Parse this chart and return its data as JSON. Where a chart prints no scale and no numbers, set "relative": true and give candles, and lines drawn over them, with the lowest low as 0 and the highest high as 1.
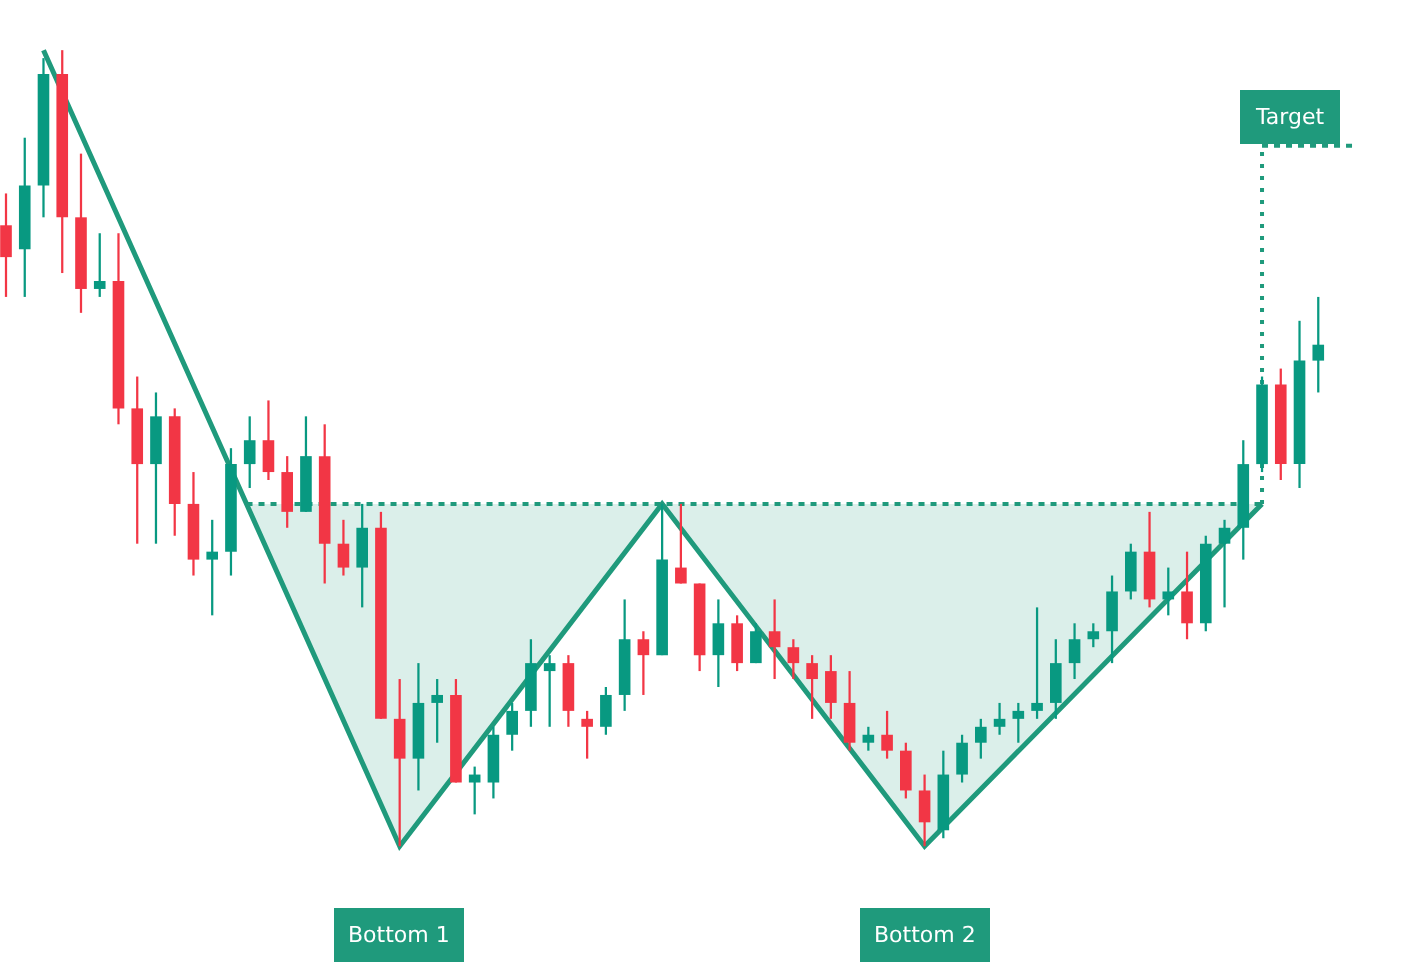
{
  "chart_data": {
    "type": "candlestick",
    "relative": true,
    "categories": [
      null,
      null,
      null,
      null,
      null,
      null,
      null,
      null,
      null,
      null,
      null,
      null,
      null,
      null,
      null,
      null,
      null,
      null,
      null,
      null,
      null,
      null,
      null,
      null,
      null,
      null,
      null,
      null,
      null,
      null,
      null,
      null,
      null,
      null,
      null,
      null,
      null,
      null,
      null,
      null,
      null,
      null,
      null,
      null,
      null,
      null,
      null,
      null,
      null,
      null,
      null,
      null,
      null,
      null,
      null,
      null,
      null,
      null,
      null,
      null,
      null,
      null,
      null,
      null,
      null,
      null,
      null,
      null,
      null,
      null,
      null
    ],
    "colors": [
      "#f23645",
      "#089981",
      "#089981",
      "#f23645",
      "#f23645",
      "#089981",
      "#f23645",
      "#f23645",
      "#089981",
      "#f23645",
      "#f23645",
      "#089981",
      "#089981",
      "#089981",
      "#f23645",
      "#f23645",
      "#089981",
      "#f23645",
      "#f23645",
      "#089981",
      "#f23645",
      "#f23645",
      "#089981",
      "#089981",
      "#f23645",
      "#089981",
      "#089981",
      "#089981",
      "#089981",
      "#089981",
      "#f23645",
      "#f23645",
      "#089981",
      "#089981",
      "#f23645",
      "#089981",
      "#f23645",
      "#f23645",
      "#089981",
      "#f23645",
      "#089981",
      "#f23645",
      "#f23645",
      "#f23645",
      "#f23645",
      "#f23645",
      "#089981",
      "#f23645",
      "#f23645",
      "#f23645",
      "#089981",
      "#089981",
      "#089981",
      "#089981",
      "#089981",
      "#089981",
      "#089981",
      "#089981",
      "#089981",
      "#089981",
      "#089981",
      "#f23645",
      "#089981",
      "#f23645",
      "#089981",
      "#089981",
      "#089981",
      "#089981",
      "#f23645",
      "#089981",
      "#089981"
    ],
    "ohlc": [
      [
        0.78,
        0.82,
        0.69,
        0.74
      ],
      [
        0.75,
        0.89,
        0.69,
        0.83
      ],
      [
        0.83,
        0.99,
        0.79,
        0.97
      ],
      [
        0.97,
        1,
        0.72,
        0.79
      ],
      [
        0.79,
        0.87,
        0.67,
        0.7
      ],
      [
        0.7,
        0.77,
        0.69,
        0.71
      ],
      [
        0.71,
        0.77,
        0.53,
        0.55
      ],
      [
        0.55,
        0.59,
        0.38,
        0.48
      ],
      [
        0.48,
        0.57,
        0.38,
        0.54
      ],
      [
        0.54,
        0.55,
        0.39,
        0.43
      ],
      [
        0.43,
        0.47,
        0.34,
        0.36
      ],
      [
        0.36,
        0.41,
        0.29,
        0.37
      ],
      [
        0.37,
        0.5,
        0.34,
        0.48
      ],
      [
        0.48,
        0.54,
        0.45,
        0.51
      ],
      [
        0.51,
        0.56,
        0.46,
        0.47
      ],
      [
        0.47,
        0.49,
        0.4,
        0.42
      ],
      [
        0.42,
        0.54,
        0.42,
        0.49
      ],
      [
        0.49,
        0.53,
        0.33,
        0.38
      ],
      [
        0.38,
        0.41,
        0.34,
        0.35
      ],
      [
        0.35,
        0.43,
        0.3,
        0.4
      ],
      [
        0.4,
        0.42,
        0.16,
        0.16
      ],
      [
        0.16,
        0.21,
        0,
        0.11
      ],
      [
        0.11,
        0.23,
        0.07,
        0.18
      ],
      [
        0.18,
        0.21,
        0.13,
        0.19
      ],
      [
        0.19,
        0.21,
        0.08,
        0.08
      ],
      [
        0.08,
        0.1,
        0.04,
        0.09
      ],
      [
        0.08,
        0.15,
        0.06,
        0.14
      ],
      [
        0.14,
        0.18,
        0.12,
        0.17
      ],
      [
        0.17,
        0.26,
        0.15,
        0.23
      ],
      [
        0.22,
        0.24,
        0.15,
        0.23
      ],
      [
        0.23,
        0.24,
        0.15,
        0.17
      ],
      [
        0.16,
        0.17,
        0.11,
        0.15
      ],
      [
        0.15,
        0.2,
        0.14,
        0.19
      ],
      [
        0.19,
        0.31,
        0.17,
        0.26
      ],
      [
        0.26,
        0.27,
        0.19,
        0.24
      ],
      [
        0.24,
        0.43,
        0.24,
        0.36
      ],
      [
        0.35,
        0.43,
        0.33,
        0.33
      ],
      [
        0.33,
        0.33,
        0.22,
        0.24
      ],
      [
        0.24,
        0.31,
        0.2,
        0.28
      ],
      [
        0.28,
        0.29,
        0.22,
        0.23
      ],
      [
        0.23,
        0.28,
        0.23,
        0.27
      ],
      [
        0.27,
        0.31,
        0.21,
        0.25
      ],
      [
        0.25,
        0.26,
        0.21,
        0.23
      ],
      [
        0.23,
        0.24,
        0.16,
        0.21
      ],
      [
        0.22,
        0.24,
        0.16,
        0.18
      ],
      [
        0.18,
        0.22,
        0.12,
        0.13
      ],
      [
        0.13,
        0.15,
        0.12,
        0.14
      ],
      [
        0.14,
        0.17,
        0.11,
        0.12
      ],
      [
        0.12,
        0.13,
        0.06,
        0.07
      ],
      [
        0.07,
        0.09,
        0,
        0.03
      ],
      [
        0.02,
        0.12,
        0.01,
        0.09
      ],
      [
        0.09,
        0.14,
        0.08,
        0.13
      ],
      [
        0.13,
        0.16,
        0.11,
        0.15
      ],
      [
        0.15,
        0.18,
        0.14,
        0.16
      ],
      [
        0.16,
        0.18,
        0.13,
        0.17
      ],
      [
        0.17,
        0.3,
        0.16,
        0.18
      ],
      [
        0.18,
        0.26,
        0.16,
        0.23
      ],
      [
        0.23,
        0.28,
        0.21,
        0.26
      ],
      [
        0.26,
        0.28,
        0.25,
        0.27
      ],
      [
        0.27,
        0.34,
        0.23,
        0.32
      ],
      [
        0.32,
        0.38,
        0.31,
        0.37
      ],
      [
        0.37,
        0.42,
        0.3,
        0.31
      ],
      [
        0.31,
        0.35,
        0.29,
        0.32
      ],
      [
        0.32,
        0.37,
        0.26,
        0.28
      ],
      [
        0.28,
        0.39,
        0.27,
        0.38
      ],
      [
        0.38,
        0.41,
        0.3,
        0.4
      ],
      [
        0.4,
        0.51,
        0.36,
        0.48
      ],
      [
        0.48,
        0.59,
        0.47,
        0.58
      ],
      [
        0.58,
        0.6,
        0.46,
        0.48
      ],
      [
        0.48,
        0.66,
        0.45,
        0.61
      ],
      [
        0.61,
        0.69,
        0.57,
        0.63
      ]
    ],
    "series": [
      {
        "type": "line",
        "color": "#1f9a7c",
        "values": [
          null,
          null,
          1,
          null,
          null,
          null,
          null,
          null,
          null,
          null,
          null,
          null,
          null,
          null,
          null,
          null,
          null,
          null,
          null,
          null,
          null,
          0,
          null,
          null,
          null,
          null,
          null,
          null,
          null,
          null,
          null,
          null,
          null,
          null,
          null,
          0.43,
          null,
          null,
          null,
          null,
          null,
          null,
          null,
          null,
          null,
          null,
          null,
          null,
          null,
          0,
          null,
          null,
          null,
          null,
          null,
          null,
          null,
          null,
          null,
          null,
          null,
          null,
          null,
          null,
          null,
          null,
          null,
          0.43,
          null,
          null,
          null
        ]
      }
    ],
    "ref_lines": [
      {
        "axis": "y",
        "value": 0.43,
        "color": "#1f9a7c",
        "line_style": "dotted"
      },
      {
        "axis": "y",
        "value": 0.88,
        "label": "Target",
        "color": "#1f9a7c",
        "line_style": "dotted"
      }
    ],
    "annotations": [
      "Bottom 1",
      "Bottom 2"
    ]
  }
}
